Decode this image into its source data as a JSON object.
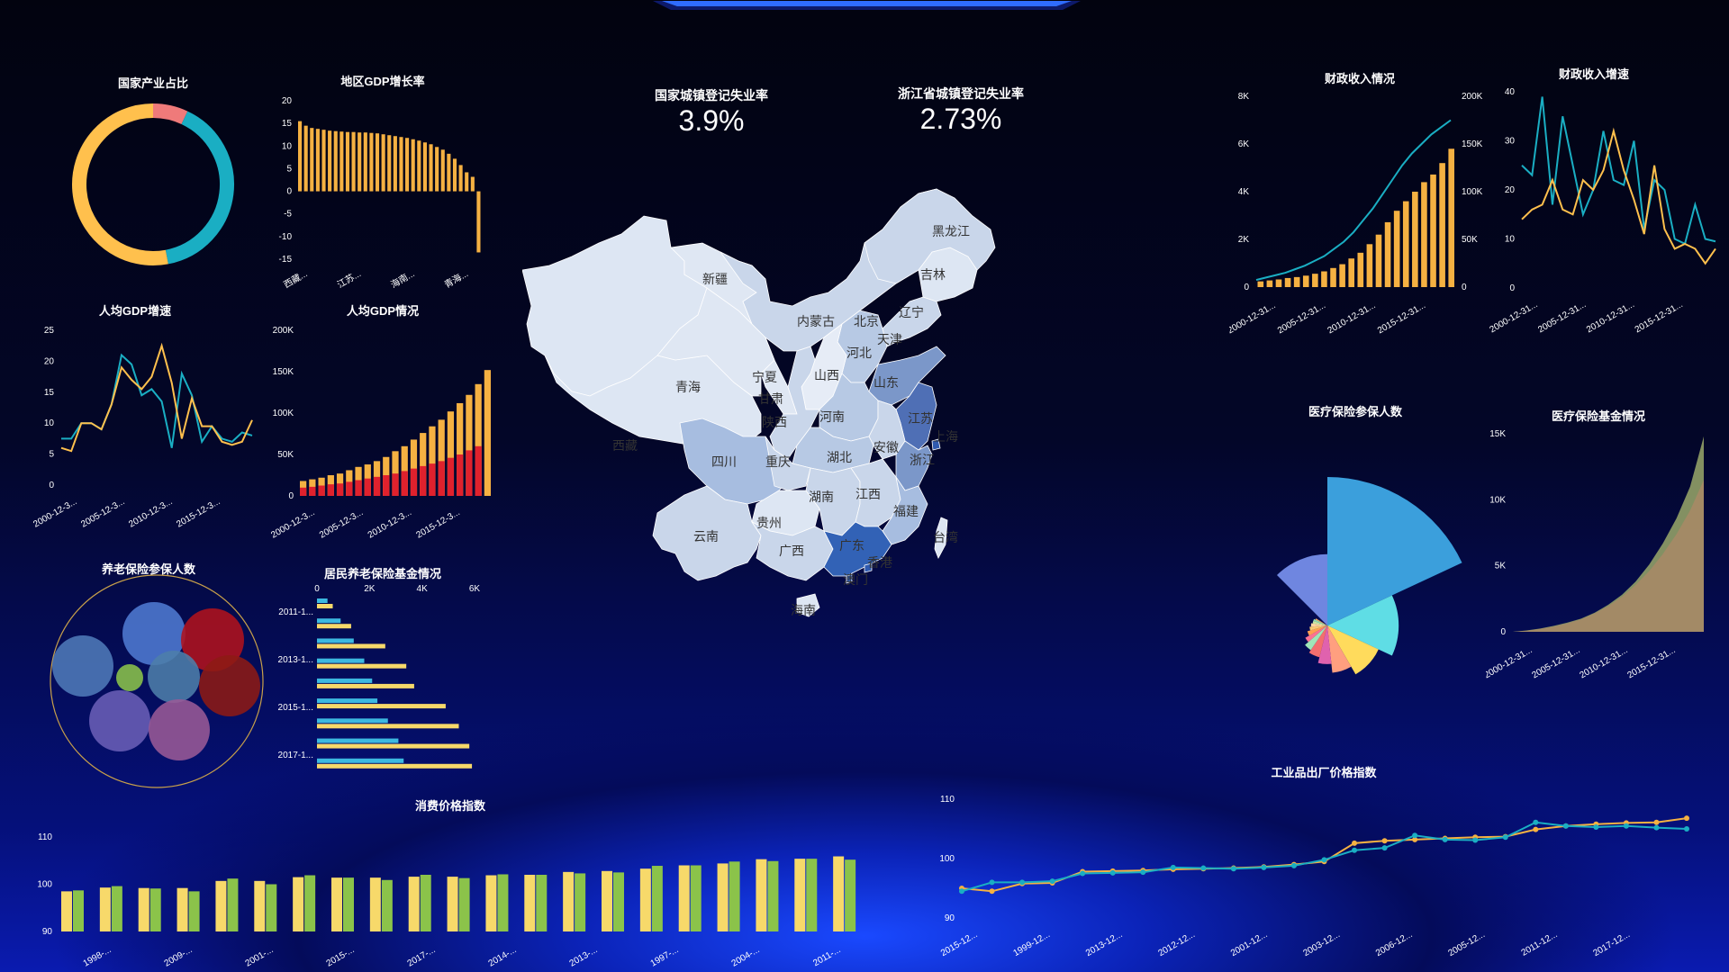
{
  "header": {
    "accent": "#2f6cff"
  },
  "kpi": [
    {
      "label": "国家城镇登记失业率",
      "value": "3.9%"
    },
    {
      "label": "浙江省城镇登记失业率",
      "value": "2.73%"
    }
  ],
  "colors": {
    "orange": "#f5b142",
    "teal": "#1ba7c0",
    "yellow": "#f7d96a",
    "green": "#8bc34a",
    "red": "#e0212d",
    "sky": "#3db9e0"
  },
  "panels": {
    "industry_share": {
      "title": "国家产业占比",
      "chart_data": {
        "type": "pie",
        "values": [
          7,
          40,
          53
        ],
        "colors": [
          "#ef7a7a",
          "#1aaec3",
          "#ffc04d"
        ]
      }
    },
    "gdp_growth_region": {
      "title": "地区GDP增长率",
      "chart_data": {
        "type": "bar",
        "values": [
          15.5,
          14.5,
          14,
          13.8,
          13.6,
          13.4,
          13.3,
          13.2,
          13.1,
          13.1,
          13,
          13,
          12.9,
          12.8,
          12.6,
          12.4,
          12.2,
          12,
          11.8,
          11.5,
          11.2,
          10.8,
          10.4,
          9.8,
          9.2,
          8.3,
          7.2,
          5.8,
          4.2,
          3.2,
          -13.5
        ],
        "ylim": [
          -15,
          20
        ],
        "yticks": [
          "20",
          "15",
          "10",
          "5",
          "0",
          "-5",
          "-10",
          "-15"
        ],
        "xtick_labels": [
          "西藏...",
          "江苏...",
          "海南...",
          "青海..."
        ]
      }
    },
    "gdp_per_capita_growth": {
      "title": "人均GDP增速",
      "chart_data": {
        "type": "line",
        "ylim": [
          0,
          25
        ],
        "yticks": [
          "25",
          "20",
          "15",
          "10",
          "5",
          "0"
        ],
        "xtick_labels": [
          "2000-12-3...",
          "2005-12-3...",
          "2010-12-3...",
          "2015-12-3..."
        ],
        "series": [
          {
            "color": "#1aaec3",
            "values": [
              7.5,
              7.5,
              10,
              10,
              9,
              13,
              21,
              19.5,
              14.5,
              15.5,
              13.5,
              6,
              18,
              14.5,
              7,
              9.5,
              7.5,
              7,
              8.5,
              8
            ]
          },
          {
            "color": "#ffc04d",
            "values": [
              6,
              5.5,
              10,
              10,
              9,
              13,
              19,
              17,
              15.5,
              17.5,
              22.5,
              16.5,
              7.5,
              14,
              9.5,
              9.5,
              7,
              6.5,
              7,
              10.5
            ]
          }
        ]
      }
    },
    "gdp_per_capita": {
      "title": "人均GDP情况",
      "chart_data": {
        "type": "bar",
        "ylim": [
          0,
          200000
        ],
        "yticks": [
          "200K",
          "150K",
          "100K",
          "50K",
          "0"
        ],
        "xtick_labels": [
          "2000-12-3...",
          "2005-12-3...",
          "2010-12-3...",
          "2015-12-3..."
        ],
        "series": [
          {
            "color": "#e0212d",
            "values": [
              10000,
              11000,
              12500,
              14000,
              15000,
              17000,
              19000,
              21000,
              23000,
              25000,
              27000,
              30000,
              33000,
              36000,
              39000,
              42000,
              46000,
              50000,
              55000,
              60000
            ]
          },
          {
            "color": "#f5b142",
            "values": [
              18000,
              20000,
              22000,
              25000,
              27000,
              31000,
              35000,
              38000,
              42000,
              47000,
              54000,
              60000,
              68000,
              76000,
              84000,
              92000,
              102000,
              112000,
              122000,
              135000,
              152000
            ]
          }
        ]
      }
    },
    "pension_insured": {
      "title": "养老保险参保人数",
      "chart_data": {
        "type": "bubble",
        "circles": [
          {
            "color": "#4f7ad1",
            "value": 28
          },
          {
            "color": "#b0121d",
            "value": 28
          },
          {
            "color": "#4f7ab8",
            "value": 27
          },
          {
            "color": "#8bc34a",
            "value": 8
          },
          {
            "color": "#4d7eaa",
            "value": 22
          },
          {
            "color": "#8d1a14",
            "value": 27
          },
          {
            "color": "#6a5fb6",
            "value": 27
          },
          {
            "color": "#9a5a96",
            "value": 27
          }
        ]
      }
    },
    "resident_pension_fund": {
      "title": "居民养老保险基金情况",
      "chart_data": {
        "type": "bar",
        "orientation": "horizontal",
        "xlim": [
          0,
          6000
        ],
        "xticks": [
          "0",
          "2K",
          "4K",
          "6K"
        ],
        "ytick_labels": [
          "2011-1...",
          "2013-1...",
          "2015-1...",
          "2017-1..."
        ],
        "series": [
          {
            "color": "#3db9e0",
            "values": [
              400,
              900,
              1400,
              1800,
              2100,
              2300,
              2700,
              3100,
              3300
            ]
          },
          {
            "color": "#f7d96a",
            "values": [
              600,
              1300,
              2600,
              3400,
              3700,
              4900,
              5400,
              5800,
              5900
            ]
          }
        ]
      }
    },
    "cpi": {
      "title": "消费价格指数",
      "chart_data": {
        "type": "bar",
        "ylim": [
          90,
          110
        ],
        "yticks": [
          "110",
          "100",
          "90"
        ],
        "xtick_labels": [
          "1998-...",
          "2009-...",
          "2001-...",
          "2015-...",
          "2017-...",
          "2014-...",
          "2013-...",
          "1997-...",
          "2004-...",
          "2011-..."
        ],
        "series": [
          {
            "color": "#f7d96a",
            "values": [
              98.5,
              99.3,
              99.2,
              99.2,
              100.7,
              100.7,
              101.5,
              101.4,
              101.4,
              101.6,
              101.6,
              101.9,
              102,
              102.6,
              102.8,
              103.3,
              104,
              104.4,
              105.3,
              105.4,
              105.9
            ]
          },
          {
            "color": "#8bc34a",
            "values": [
              98.7,
              99.6,
              99.1,
              98.5,
              101.2,
              100,
              101.9,
              101.4,
              100.9,
              102,
              101.3,
              102.1,
              102,
              102.3,
              102.5,
              103.9,
              104,
              104.8,
              104.9,
              105.4,
              105.2
            ]
          }
        ]
      }
    },
    "fiscal_revenue": {
      "title": "财政收入情况",
      "chart_data": {
        "type": "bar+line",
        "yticks_left": [
          "8K",
          "6K",
          "4K",
          "2K",
          "0"
        ],
        "yticks_right": [
          "200K",
          "150K",
          "100K",
          "50K",
          "0"
        ],
        "xtick_labels": [
          "2000-12-31...",
          "2005-12-31...",
          "2010-12-31...",
          "2015-12-31..."
        ],
        "bars": {
          "color": "#f5b142",
          "values": [
            6000,
            7000,
            8000,
            9500,
            10500,
            12000,
            14000,
            16500,
            20000,
            24000,
            30000,
            36000,
            45000,
            55000,
            68000,
            80000,
            90000,
            100000,
            110000,
            118000,
            130000,
            145000
          ]
        },
        "line": {
          "color": "#1aaec3",
          "values": [
            300,
            400,
            500,
            600,
            750,
            900,
            1100,
            1300,
            1600,
            1900,
            2300,
            2800,
            3300,
            3900,
            4500,
            5100,
            5600,
            6000,
            6400,
            6700,
            7000
          ]
        }
      }
    },
    "fiscal_growth": {
      "title": "财政收入增速",
      "chart_data": {
        "type": "line",
        "ylim": [
          0,
          40
        ],
        "yticks": [
          "40",
          "30",
          "20",
          "10",
          "0"
        ],
        "xtick_labels": [
          "2000-12-31...",
          "2005-12-31...",
          "2010-12-31...",
          "2015-12-31..."
        ],
        "series": [
          {
            "color": "#1aaec3",
            "values": [
              25,
              23,
              39,
              17,
              35,
              25,
              15,
              20,
              32,
              22,
              21,
              30,
              12,
              22,
              20,
              10,
              9,
              17,
              10,
              9.5
            ]
          },
          {
            "color": "#ffc04d",
            "values": [
              14,
              16,
              17,
              22,
              16,
              15,
              22,
              20,
              24,
              32,
              24,
              18,
              11,
              25,
              12,
              8,
              9,
              8,
              5,
              8
            ]
          }
        ]
      }
    },
    "medical_insured": {
      "title": "医疗保险参保人数",
      "chart_data": {
        "type": "rose",
        "values": [
          100,
          48,
          38,
          32,
          26,
          22,
          20,
          17,
          14,
          12,
          11,
          10,
          10,
          9,
          48
        ],
        "colors": [
          "#3b9fdc",
          "#5fdde5",
          "#ffdb5c",
          "#ff9f7f",
          "#e062ae",
          "#f36e6e",
          "#9fe6b8",
          "#fb7293",
          "#ff9f50",
          "#f7c873",
          "#ffd4a0",
          "#c8e6a0",
          "#8fdcb3",
          "#f6a65a",
          "#6f86e0"
        ]
      }
    },
    "medical_fund": {
      "title": "医疗保险基金情况",
      "chart_data": {
        "type": "area",
        "ylim": [
          0,
          15000
        ],
        "yticks": [
          "15K",
          "10K",
          "5K",
          "0"
        ],
        "xtick_labels": [
          "2000-12-31...",
          "2005-12-31...",
          "2010-12-31...",
          "2015-12-31..."
        ],
        "series": [
          {
            "color": "#9aa86a",
            "values": [
              0,
              100,
              250,
              450,
              700,
              1000,
              1450,
              2050,
              2800,
              3800,
              5100,
              6700,
              8600,
              11000,
              14800
            ]
          },
          {
            "color": "#a98a66",
            "values": [
              0,
              80,
              220,
              400,
              640,
              950,
              1400,
              1950,
              2650,
              3550,
              4600,
              5900,
              7400,
              9200,
              11500
            ]
          }
        ]
      }
    },
    "ppi": {
      "title": "工业品出厂价格指数",
      "chart_data": {
        "type": "line",
        "ylim": [
          90,
          110
        ],
        "yticks": [
          "110",
          "100",
          "90"
        ],
        "xtick_labels": [
          "2015-12...",
          "1999-12...",
          "2013-12...",
          "2012-12...",
          "2001-12...",
          "2003-12...",
          "2006-12...",
          "2005-12...",
          "2011-12...",
          "2017-12..."
        ],
        "series": [
          {
            "color": "#f5b142",
            "values": [
              95,
              94.5,
              95.8,
              95.9,
              97.8,
              97.9,
              98,
              98.2,
              98.3,
              98.4,
              98.6,
              99,
              99.5,
              102.6,
              103,
              103.2,
              103.4,
              103.6,
              103.7,
              104.9,
              105.5,
              105.8,
              106,
              106.1,
              106.8
            ]
          },
          {
            "color": "#1aaec3",
            "values": [
              94.5,
              96,
              96,
              96.2,
              97.5,
              97.6,
              97.7,
              98.5,
              98.4,
              98.3,
              98.5,
              98.8,
              99.8,
              101.4,
              101.8,
              103.9,
              103.2,
              103.1,
              103.6,
              106.1,
              105.5,
              105.3,
              105.5,
              105.2,
              105
            ]
          }
        ]
      }
    }
  },
  "map": {
    "labels": [
      "新疆",
      "西藏",
      "青海",
      "甘肃",
      "宁夏",
      "内蒙古",
      "北京",
      "天津",
      "河北",
      "山西",
      "山东",
      "陕西",
      "河南",
      "江苏",
      "上海",
      "安徽",
      "湖北",
      "浙江",
      "四川",
      "重庆",
      "贵州",
      "湖南",
      "江西",
      "福建",
      "台湾",
      "云南",
      "广西",
      "广东",
      "香港",
      "澳门",
      "海南",
      "辽宁",
      "吉林",
      "黑龙江"
    ]
  }
}
